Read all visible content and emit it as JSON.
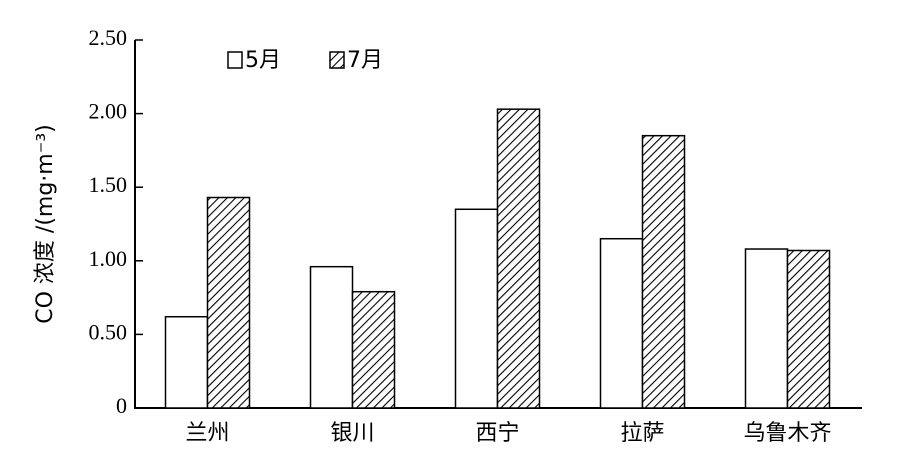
{
  "chart_data": {
    "type": "bar",
    "y_label": "CO 浓度 /(mg·m⁻³)",
    "categories": [
      "兰州",
      "银川",
      "西宁",
      "拉萨",
      "乌鲁木齐"
    ],
    "series": [
      {
        "name": "5月",
        "color": "#ffffff",
        "pattern": "solid",
        "values": [
          0.62,
          0.96,
          1.35,
          1.15,
          1.08
        ]
      },
      {
        "name": "7月",
        "color": "#ffffff",
        "pattern": "hatch",
        "values": [
          1.43,
          0.79,
          2.03,
          1.85,
          1.07
        ]
      }
    ],
    "ylim": [
      0,
      2.5
    ],
    "yticks": [
      0,
      {
        "value": 0.5,
        "label": "0.50"
      },
      {
        "value": 1,
        "label": "1.00"
      },
      {
        "value": 1.5,
        "label": "1.50"
      },
      {
        "value": 2,
        "label": "2.00"
      },
      {
        "value": 2.5,
        "label": "2.50"
      }
    ],
    "grid": false,
    "legend": "top-left"
  }
}
